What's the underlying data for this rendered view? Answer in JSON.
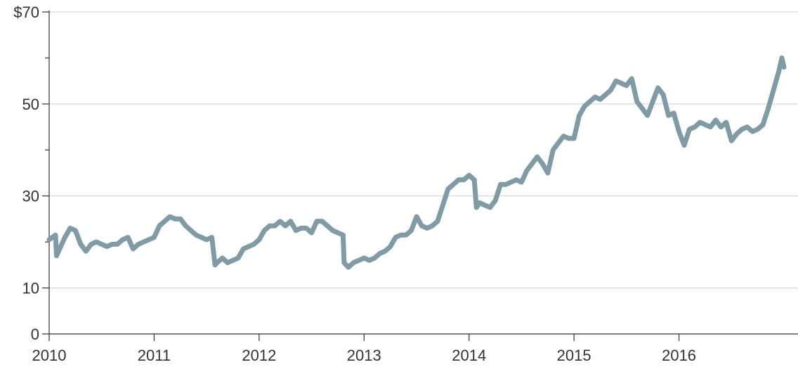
{
  "chart_data": {
    "type": "line",
    "title": "",
    "xlabel": "",
    "ylabel": "",
    "ylim": [
      0,
      70
    ],
    "xlim": [
      2010.0,
      2017.0
    ],
    "y_ticks": [
      0,
      10,
      30,
      50,
      70
    ],
    "y_tick_labels": [
      "0",
      "10",
      "30",
      "50",
      "$70"
    ],
    "y_minor_ticks": [
      20,
      40,
      60
    ],
    "x_ticks": [
      2010,
      2011,
      2012,
      2013,
      2014,
      2015,
      2016
    ],
    "x_tick_labels": [
      "2010",
      "2011",
      "2012",
      "2013",
      "2014",
      "2015",
      "2016"
    ],
    "grid": true,
    "legend": "none",
    "line_color": "#7f9ba6",
    "series": [
      {
        "x": [
          2010.0,
          2010.06,
          2010.07,
          2010.1,
          2010.15,
          2010.2,
          2010.25,
          2010.3,
          2010.35,
          2010.4,
          2010.45,
          2010.5,
          2010.55,
          2010.6,
          2010.65,
          2010.7,
          2010.75,
          2010.8,
          2010.85,
          2010.9,
          2010.95,
          2011.0,
          2011.05,
          2011.1,
          2011.15,
          2011.2,
          2011.25,
          2011.3,
          2011.35,
          2011.4,
          2011.45,
          2011.5,
          2011.55,
          2011.58,
          2011.6,
          2011.65,
          2011.7,
          2011.75,
          2011.8,
          2011.85,
          2011.9,
          2011.95,
          2012.0,
          2012.05,
          2012.1,
          2012.15,
          2012.2,
          2012.25,
          2012.3,
          2012.35,
          2012.4,
          2012.45,
          2012.5,
          2012.55,
          2012.6,
          2012.65,
          2012.7,
          2012.75,
          2012.8,
          2012.81,
          2012.85,
          2012.9,
          2012.95,
          2013.0,
          2013.05,
          2013.1,
          2013.15,
          2013.2,
          2013.25,
          2013.3,
          2013.35,
          2013.4,
          2013.45,
          2013.5,
          2013.55,
          2013.6,
          2013.65,
          2013.7,
          2013.75,
          2013.8,
          2013.85,
          2013.9,
          2013.95,
          2014.0,
          2014.05,
          2014.07,
          2014.1,
          2014.15,
          2014.2,
          2014.25,
          2014.3,
          2014.35,
          2014.4,
          2014.45,
          2014.5,
          2014.55,
          2014.6,
          2014.65,
          2014.7,
          2014.75,
          2014.8,
          2014.85,
          2014.9,
          2014.95,
          2015.0,
          2015.05,
          2015.1,
          2015.15,
          2015.2,
          2015.25,
          2015.3,
          2015.35,
          2015.4,
          2015.45,
          2015.5,
          2015.55,
          2015.6,
          2015.65,
          2015.7,
          2015.75,
          2015.8,
          2015.85,
          2015.9,
          2015.95,
          2016.0,
          2016.05,
          2016.1,
          2016.15,
          2016.2,
          2016.25,
          2016.3,
          2016.35,
          2016.4,
          2016.45,
          2016.5,
          2016.55,
          2016.6,
          2016.65,
          2016.7,
          2016.75,
          2016.8,
          2016.85,
          2016.9,
          2016.95,
          2016.98,
          2017.0
        ],
        "y": [
          20.5,
          21.5,
          17.0,
          18.5,
          21.0,
          23.0,
          22.5,
          19.5,
          18.0,
          19.5,
          20.0,
          19.5,
          19.0,
          19.5,
          19.5,
          20.5,
          21.0,
          18.5,
          19.5,
          20.0,
          20.5,
          21.0,
          23.5,
          24.5,
          25.5,
          25.0,
          25.0,
          23.5,
          22.5,
          21.5,
          21.0,
          20.5,
          21.0,
          15.0,
          15.5,
          16.5,
          15.5,
          16.0,
          16.5,
          18.5,
          19.0,
          19.5,
          20.5,
          22.5,
          23.5,
          23.5,
          24.5,
          23.5,
          24.5,
          22.5,
          23.0,
          23.0,
          22.0,
          24.5,
          24.5,
          23.5,
          22.5,
          22.0,
          21.5,
          15.5,
          14.5,
          15.5,
          16.0,
          16.5,
          16.0,
          16.5,
          17.5,
          18.0,
          19.0,
          21.0,
          21.5,
          21.5,
          22.5,
          25.5,
          23.5,
          23.0,
          23.5,
          24.5,
          28.0,
          31.5,
          32.5,
          33.5,
          33.5,
          34.5,
          33.5,
          27.5,
          28.5,
          28.0,
          27.5,
          29.0,
          32.5,
          32.5,
          33.0,
          33.5,
          33.0,
          35.5,
          37.0,
          38.5,
          37.0,
          35.0,
          40.0,
          41.5,
          43.0,
          42.5,
          42.5,
          47.5,
          49.5,
          50.5,
          51.5,
          51.0,
          52.0,
          53.0,
          55.0,
          54.5,
          54.0,
          55.5,
          50.5,
          49.0,
          47.5,
          50.5,
          53.5,
          52.0,
          47.5,
          48.0,
          44.0,
          41.0,
          44.5,
          45.0,
          46.0,
          45.5,
          45.0,
          46.5,
          45.0,
          46.0,
          42.0,
          43.5,
          44.5,
          45.0,
          44.0,
          44.5,
          45.5,
          49.0,
          53.0,
          57.0,
          60.0,
          58.0
        ]
      }
    ]
  }
}
